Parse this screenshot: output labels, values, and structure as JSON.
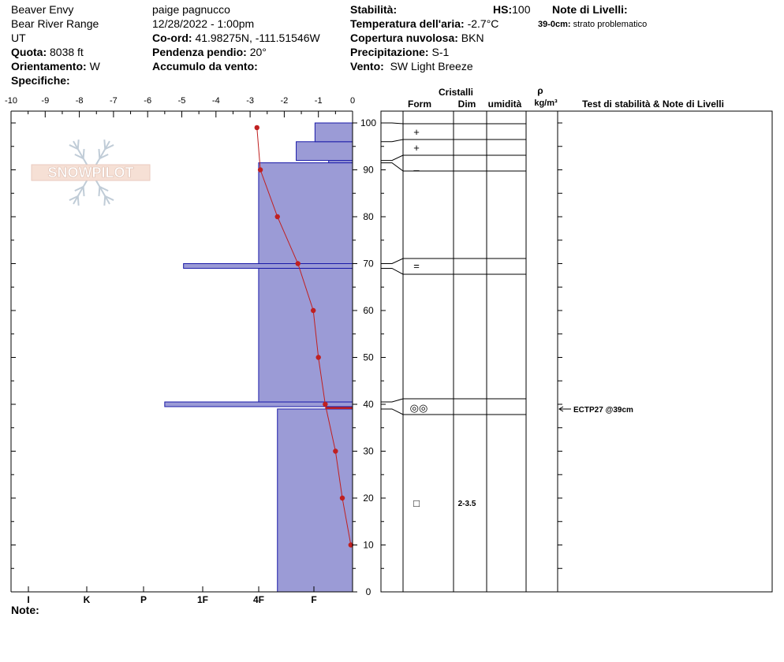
{
  "header": {
    "location": "Beaver Envy",
    "range": "Bear River Range",
    "state": "UT",
    "elevation_label": "Quota:",
    "elevation_value": "8038 ft",
    "aspect_label": "Orientamento:",
    "aspect_value": "W",
    "specifics_label": "Specifiche:",
    "observer": "paige pagnucco",
    "datetime": "12/28/2022 - 1:00pm",
    "coord_label": "Co-ord:",
    "coord_value": "41.98275N, -111.51546W",
    "slope_label": "Pendenza pendio:",
    "slope_value": "20°",
    "wind_loading_label": "Accumulo da vento:",
    "stability_label": "Stabilità:",
    "air_temp_label": "Temperatura dell'aria:",
    "air_temp_value": "-2.7°C",
    "cloud_label": "Copertura nuvolosa:",
    "cloud_value": "BKN",
    "precip_label": "Precipitazione:",
    "precip_value": "S-1",
    "wind_label": "Vento:",
    "wind_value": "SW Light Breeze",
    "hs_label": "HS:",
    "hs_value": "100",
    "layer_notes_label": "Note di Livelli:",
    "layer_note_depth": "39-0cm:",
    "layer_note_text": "strato problematico"
  },
  "logo_text": "SNOWPILOT",
  "notes_label": "Note:",
  "table_headers": {
    "crystals": "Cristalli",
    "form": "Form",
    "size": "Dim",
    "moisture": "umidità",
    "rho": "ρ",
    "density_unit": "kg/m³",
    "tests": "Test di stabilità & Note di Livelli"
  },
  "crystal_forms": [
    {
      "symbol": "+",
      "height_cm": 96.5
    },
    {
      "symbol": "+",
      "height_cm": 93.3
    },
    {
      "symbol": "–",
      "height_cm": 89.5
    },
    {
      "symbol": "=",
      "height_cm": 69.5
    },
    {
      "symbol": "◎◎",
      "height_cm": 39.5
    },
    {
      "symbol": "□",
      "height_cm": 19
    }
  ],
  "grain_sizes": [
    {
      "text": "2-3.5",
      "height_cm": 19
    }
  ],
  "stability_tests": [
    {
      "text": "ECTP27 @39cm",
      "height_cm": 39
    }
  ],
  "chart_data": {
    "type": "snow_profile",
    "temp_axis": {
      "ticks": [
        "-10",
        "-9",
        "-8",
        "-7",
        "-6",
        "-5",
        "-4",
        "-3",
        "-2",
        "-1",
        "0"
      ],
      "range": [
        -10,
        0
      ]
    },
    "hardness_axis": {
      "labels": [
        "I",
        "K",
        "P",
        "1F",
        "4F",
        "F"
      ]
    },
    "height_axis": {
      "range": [
        0,
        100
      ],
      "ticks": [
        "0",
        "10",
        "20",
        "30",
        "40",
        "50",
        "60",
        "70",
        "80",
        "90",
        "100"
      ],
      "unit": "cm"
    },
    "hardness_profile": [
      {
        "from_cm": 0,
        "to_cm": 39,
        "temp_equiv": -2.2
      },
      {
        "from_cm": 39,
        "to_cm": 39.5,
        "temp_equiv": 0
      },
      {
        "from_cm": 39.5,
        "to_cm": 40.5,
        "temp_equiv": -5.5
      },
      {
        "from_cm": 40.5,
        "to_cm": 69,
        "temp_equiv": -2.75
      },
      {
        "from_cm": 69,
        "to_cm": 70,
        "temp_equiv": -4.95
      },
      {
        "from_cm": 70,
        "to_cm": 91.5,
        "temp_equiv": -2.75
      },
      {
        "from_cm": 91.5,
        "to_cm": 92,
        "temp_equiv": -0.7
      },
      {
        "from_cm": 92,
        "to_cm": 96,
        "temp_equiv": -1.65
      },
      {
        "from_cm": 96,
        "to_cm": 100,
        "temp_equiv": -1.1
      }
    ],
    "temperature_profile": [
      {
        "height_cm": 99,
        "temp_c": -2.8
      },
      {
        "height_cm": 90,
        "temp_c": -2.7
      },
      {
        "height_cm": 80,
        "temp_c": -2.2
      },
      {
        "height_cm": 70,
        "temp_c": -1.6
      },
      {
        "height_cm": 60,
        "temp_c": -1.15
      },
      {
        "height_cm": 50,
        "temp_c": -1.0
      },
      {
        "height_cm": 40,
        "temp_c": -0.8
      },
      {
        "height_cm": 30,
        "temp_c": -0.5
      },
      {
        "height_cm": 20,
        "temp_c": -0.3
      },
      {
        "height_cm": 10,
        "temp_c": -0.05
      }
    ],
    "weak_layer_cm": 39,
    "layer_boundaries_cm": [
      100,
      96,
      92,
      91.5,
      69,
      70,
      40.5,
      39
    ],
    "colors": {
      "layer_fill": "#9b9bd6",
      "layer_stroke": "#1a1aa8",
      "temp_line": "#c02020",
      "weak_layer": "#c02020"
    }
  }
}
